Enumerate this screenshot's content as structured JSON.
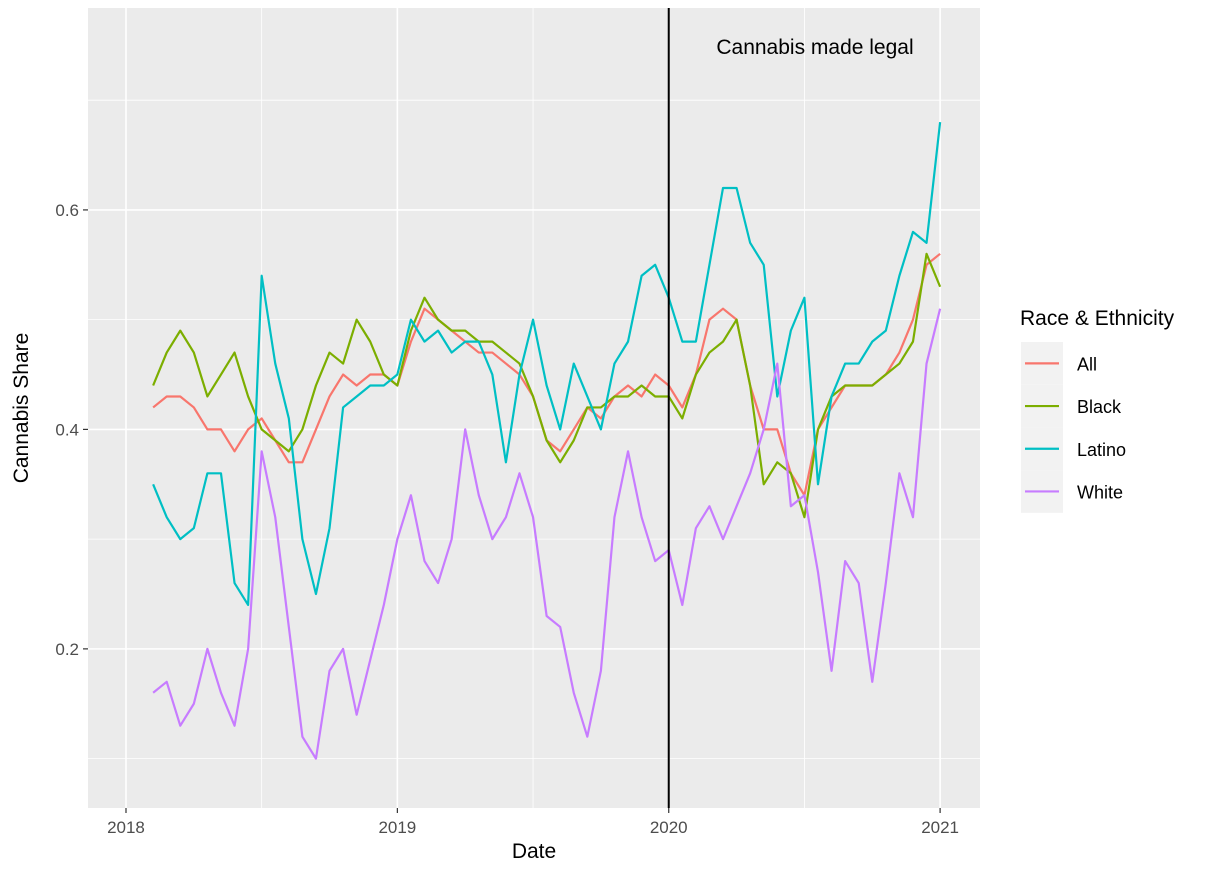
{
  "chart_data": {
    "type": "line",
    "x_label": "Date",
    "y_label": "Cannabis Share",
    "legend_title": "Race & Ethnicity",
    "legend_position": "right",
    "annotation": "Cannabis made legal",
    "vline": 2020,
    "xlim": [
      2017.86,
      2021.147
    ],
    "ylim": [
      0.055,
      0.784
    ],
    "xticks": [
      2018,
      2019,
      2020,
      2021
    ],
    "yticks": [
      0.2,
      0.4,
      0.6
    ],
    "grid": true,
    "minor_grid": true,
    "x": [
      2018.1,
      2018.15,
      2018.2,
      2018.25,
      2018.3,
      2018.35,
      2018.4,
      2018.45,
      2018.5,
      2018.55,
      2018.6,
      2018.65,
      2018.7,
      2018.75,
      2018.8,
      2018.85,
      2018.9,
      2018.95,
      2019.0,
      2019.05,
      2019.1,
      2019.15,
      2019.2,
      2019.25,
      2019.3,
      2019.35,
      2019.4,
      2019.45,
      2019.5,
      2019.55,
      2019.6,
      2019.65,
      2019.7,
      2019.75,
      2019.8,
      2019.85,
      2019.9,
      2019.95,
      2020.0,
      2020.05,
      2020.1,
      2020.15,
      2020.2,
      2020.25,
      2020.3,
      2020.35,
      2020.4,
      2020.45,
      2020.5,
      2020.55,
      2020.6,
      2020.65,
      2020.7,
      2020.75,
      2020.8,
      2020.85,
      2020.9,
      2020.95,
      2021.0
    ],
    "series": [
      {
        "name": "All",
        "color": "#F8766D",
        "values": [
          0.42,
          0.43,
          0.43,
          0.42,
          0.4,
          0.4,
          0.38,
          0.4,
          0.41,
          0.39,
          0.37,
          0.37,
          0.4,
          0.43,
          0.45,
          0.44,
          0.45,
          0.45,
          0.44,
          0.48,
          0.51,
          0.5,
          0.49,
          0.48,
          0.47,
          0.47,
          0.46,
          0.45,
          0.43,
          0.39,
          0.38,
          0.4,
          0.42,
          0.41,
          0.43,
          0.44,
          0.43,
          0.45,
          0.44,
          0.42,
          0.45,
          0.5,
          0.51,
          0.5,
          0.44,
          0.4,
          0.4,
          0.36,
          0.34,
          0.4,
          0.42,
          0.44,
          0.44,
          0.44,
          0.45,
          0.47,
          0.5,
          0.55,
          0.56
        ]
      },
      {
        "name": "Black",
        "color": "#7CAE00",
        "values": [
          0.44,
          0.47,
          0.49,
          0.47,
          0.43,
          0.45,
          0.47,
          0.43,
          0.4,
          0.39,
          0.38,
          0.4,
          0.44,
          0.47,
          0.46,
          0.5,
          0.48,
          0.45,
          0.44,
          0.49,
          0.52,
          0.5,
          0.49,
          0.49,
          0.48,
          0.48,
          0.47,
          0.46,
          0.43,
          0.39,
          0.37,
          0.39,
          0.42,
          0.42,
          0.43,
          0.43,
          0.44,
          0.43,
          0.43,
          0.41,
          0.45,
          0.47,
          0.48,
          0.5,
          0.44,
          0.35,
          0.37,
          0.36,
          0.32,
          0.4,
          0.43,
          0.44,
          0.44,
          0.44,
          0.45,
          0.46,
          0.48,
          0.56,
          0.53
        ]
      },
      {
        "name": "Latino",
        "color": "#00BFC4",
        "values": [
          0.35,
          0.32,
          0.3,
          0.31,
          0.36,
          0.36,
          0.26,
          0.24,
          0.54,
          0.46,
          0.41,
          0.3,
          0.25,
          0.31,
          0.42,
          0.43,
          0.44,
          0.44,
          0.45,
          0.5,
          0.48,
          0.49,
          0.47,
          0.48,
          0.48,
          0.45,
          0.37,
          0.45,
          0.5,
          0.44,
          0.4,
          0.46,
          0.43,
          0.4,
          0.46,
          0.48,
          0.54,
          0.55,
          0.52,
          0.48,
          0.48,
          0.55,
          0.62,
          0.62,
          0.57,
          0.55,
          0.43,
          0.49,
          0.52,
          0.35,
          0.43,
          0.46,
          0.46,
          0.48,
          0.49,
          0.54,
          0.58,
          0.57,
          0.68
        ]
      },
      {
        "name": "White",
        "color": "#C77CFF",
        "values": [
          0.16,
          0.17,
          0.13,
          0.15,
          0.2,
          0.16,
          0.13,
          0.2,
          0.38,
          0.32,
          0.22,
          0.12,
          0.1,
          0.18,
          0.2,
          0.14,
          0.19,
          0.24,
          0.3,
          0.34,
          0.28,
          0.26,
          0.3,
          0.4,
          0.34,
          0.3,
          0.32,
          0.36,
          0.32,
          0.23,
          0.22,
          0.16,
          0.12,
          0.18,
          0.32,
          0.38,
          0.32,
          0.28,
          0.29,
          0.24,
          0.31,
          0.33,
          0.3,
          0.33,
          0.36,
          0.4,
          0.46,
          0.33,
          0.34,
          0.27,
          0.18,
          0.28,
          0.26,
          0.17,
          0.26,
          0.36,
          0.32,
          0.46,
          0.51
        ]
      }
    ]
  }
}
